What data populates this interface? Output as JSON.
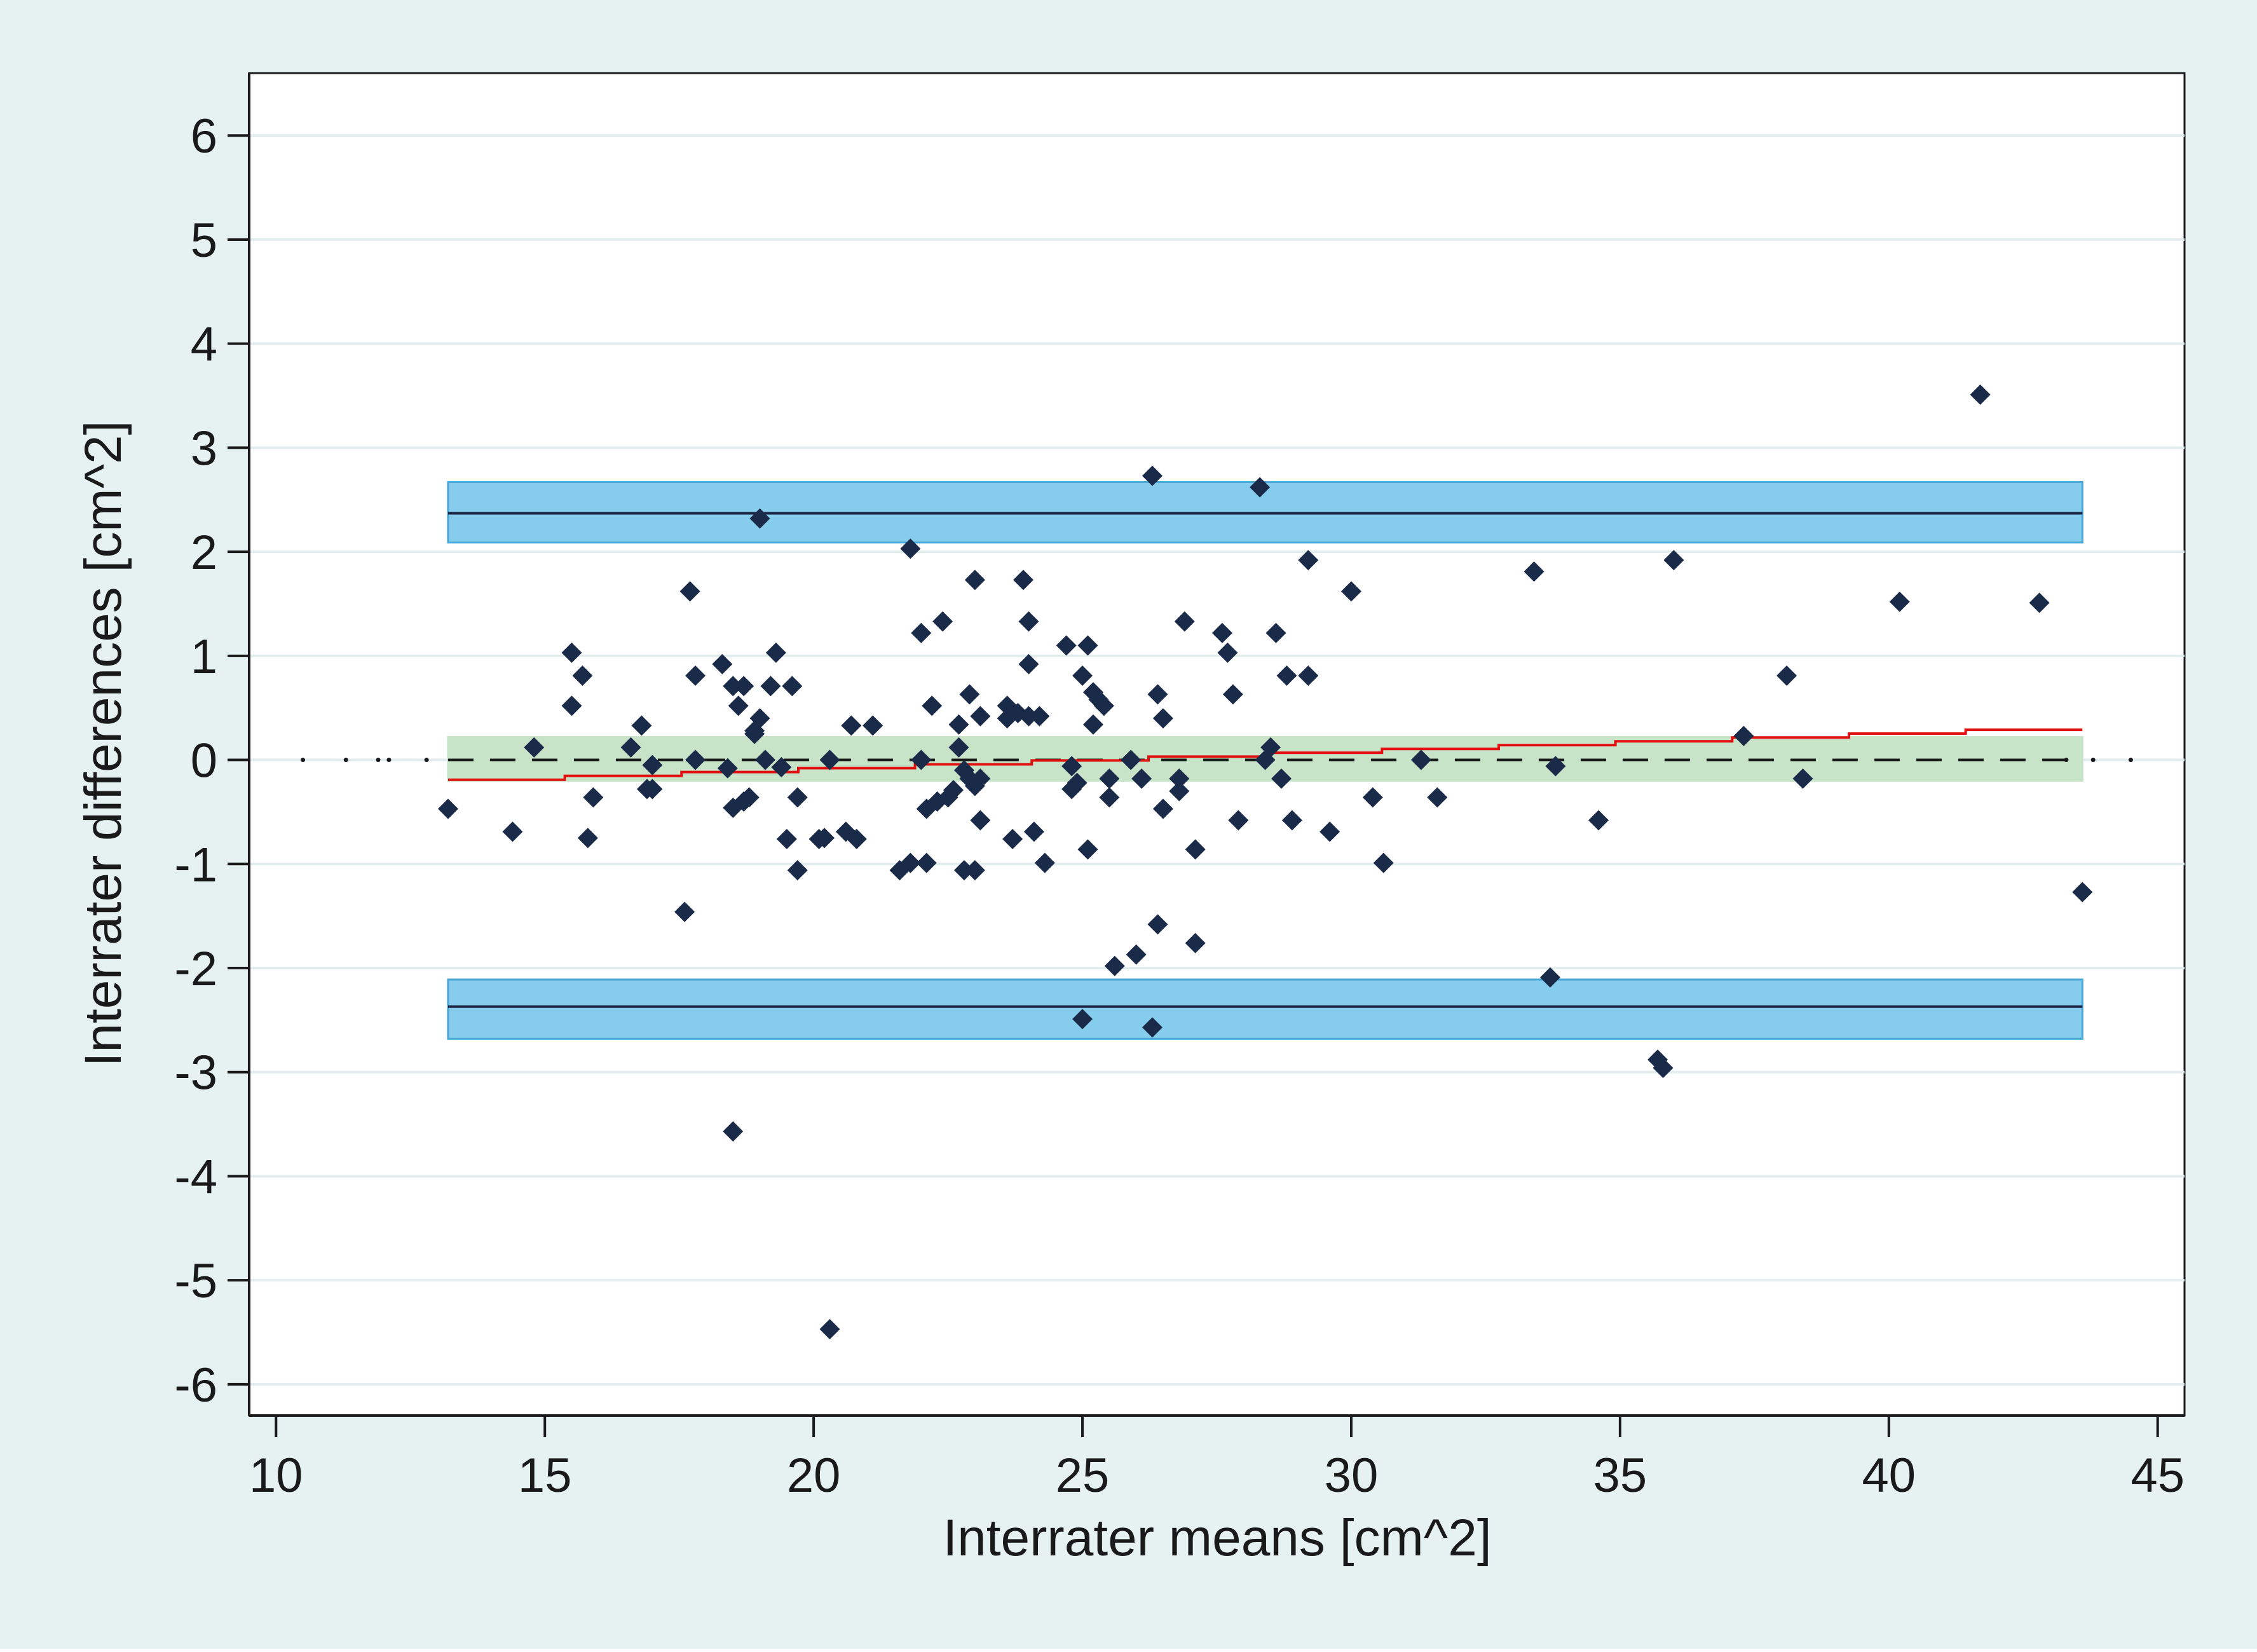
{
  "chart_data": {
    "type": "scatter",
    "subtype": "bland-altman",
    "title": "",
    "xlabel": "Interrater means [cm^2]",
    "ylabel": "Interrater differences [cm^2]",
    "xlim": [
      9.5,
      45.5
    ],
    "ylim": [
      -6.3,
      6.6
    ],
    "xticks": [
      10,
      15,
      20,
      25,
      30,
      35,
      40,
      45
    ],
    "yticks": [
      -6,
      -5,
      -4,
      -3,
      -2,
      -1,
      0,
      1,
      2,
      3,
      4,
      5,
      6
    ],
    "grid": "horizontal",
    "colors": {
      "outer_background": "#e6f1f1",
      "plot_background": "#ffffff",
      "gridline": "#e4eded",
      "point": "#1a2b4a",
      "loa_band": "#86ccec",
      "loa_band_edge": "#4aa6d6",
      "loa_line": "#1a2440",
      "mean_band": "#c8e4c8",
      "mean_line": "#1a1a1a",
      "trend_line": "#e01010",
      "axis": "#1a1a1a"
    },
    "bands": {
      "x_range": [
        13.2,
        43.6
      ],
      "upper_loa": {
        "line": 2.37,
        "low": 2.09,
        "high": 2.67
      },
      "lower_loa": {
        "line": -2.37,
        "low": -2.68,
        "high": -2.11
      },
      "mean_difference": {
        "line": 0.0,
        "low": -0.2,
        "high": 0.22
      }
    },
    "zero_reference_line": {
      "y": 0,
      "dotted_x_values": [
        10.5,
        11.3,
        11.9,
        12.1,
        12.8,
        43.3,
        43.8,
        44.5
      ]
    },
    "trend_line": {
      "x_start": 13.2,
      "y_start": -0.19,
      "x_end": 43.6,
      "y_end": 0.29,
      "steps": 14
    },
    "points": [
      [
        13.2,
        -0.47
      ],
      [
        14.4,
        -0.69
      ],
      [
        14.8,
        0.12
      ],
      [
        15.5,
        1.03
      ],
      [
        15.5,
        0.52
      ],
      [
        15.7,
        0.81
      ],
      [
        15.8,
        -0.75
      ],
      [
        15.9,
        -0.36
      ],
      [
        16.6,
        0.12
      ],
      [
        16.8,
        0.33
      ],
      [
        16.9,
        -0.28
      ],
      [
        17.0,
        -0.28
      ],
      [
        17.0,
        -0.05
      ],
      [
        17.6,
        -1.46
      ],
      [
        17.7,
        1.62
      ],
      [
        17.8,
        0.81
      ],
      [
        17.8,
        0.0
      ],
      [
        18.3,
        0.92
      ],
      [
        18.4,
        -0.08
      ],
      [
        18.5,
        -0.46
      ],
      [
        18.5,
        0.71
      ],
      [
        18.5,
        -3.57
      ],
      [
        18.6,
        0.52
      ],
      [
        18.7,
        0.71
      ],
      [
        18.7,
        -0.4
      ],
      [
        18.8,
        -0.36
      ],
      [
        18.9,
        0.28
      ],
      [
        18.9,
        0.25
      ],
      [
        19.0,
        0.4
      ],
      [
        19.0,
        2.32
      ],
      [
        19.1,
        0.0
      ],
      [
        19.2,
        0.71
      ],
      [
        19.3,
        1.03
      ],
      [
        19.4,
        -0.07
      ],
      [
        19.5,
        -0.76
      ],
      [
        19.6,
        0.71
      ],
      [
        19.7,
        -0.36
      ],
      [
        19.7,
        -1.06
      ],
      [
        20.1,
        -0.76
      ],
      [
        20.2,
        -0.75
      ],
      [
        20.3,
        0.0
      ],
      [
        20.3,
        -5.47
      ],
      [
        20.6,
        -0.69
      ],
      [
        20.7,
        0.33
      ],
      [
        20.8,
        -0.76
      ],
      [
        21.1,
        0.33
      ],
      [
        21.6,
        -1.06
      ],
      [
        21.8,
        -0.99
      ],
      [
        21.8,
        2.03
      ],
      [
        22.0,
        1.22
      ],
      [
        22.0,
        0.0
      ],
      [
        22.1,
        -0.99
      ],
      [
        22.1,
        -0.47
      ],
      [
        22.2,
        0.52
      ],
      [
        22.3,
        -0.4
      ],
      [
        22.4,
        1.33
      ],
      [
        22.5,
        -0.36
      ],
      [
        22.6,
        -0.29
      ],
      [
        22.7,
        0.34
      ],
      [
        22.7,
        0.12
      ],
      [
        22.8,
        -1.06
      ],
      [
        22.8,
        -0.1
      ],
      [
        22.9,
        -0.18
      ],
      [
        22.9,
        0.63
      ],
      [
        23.0,
        1.73
      ],
      [
        23.0,
        -0.25
      ],
      [
        23.0,
        -1.06
      ],
      [
        23.1,
        -0.58
      ],
      [
        23.1,
        -0.18
      ],
      [
        23.1,
        0.42
      ],
      [
        23.6,
        0.52
      ],
      [
        23.6,
        0.4
      ],
      [
        23.7,
        -0.76
      ],
      [
        23.8,
        0.45
      ],
      [
        23.9,
        1.73
      ],
      [
        24.0,
        0.42
      ],
      [
        24.0,
        1.33
      ],
      [
        24.0,
        0.92
      ],
      [
        24.1,
        -0.69
      ],
      [
        24.2,
        0.42
      ],
      [
        24.3,
        -0.99
      ],
      [
        24.7,
        1.1
      ],
      [
        24.8,
        -0.06
      ],
      [
        24.8,
        -0.28
      ],
      [
        24.9,
        -0.22
      ],
      [
        25.0,
        -2.49
      ],
      [
        25.0,
        0.81
      ],
      [
        25.1,
        1.1
      ],
      [
        25.1,
        -0.86
      ],
      [
        25.2,
        0.65
      ],
      [
        25.2,
        0.34
      ],
      [
        25.3,
        0.58
      ],
      [
        25.4,
        0.52
      ],
      [
        25.5,
        -0.18
      ],
      [
        25.5,
        -0.36
      ],
      [
        25.6,
        -1.98
      ],
      [
        25.9,
        0.0
      ],
      [
        26.0,
        -1.87
      ],
      [
        26.1,
        -0.18
      ],
      [
        26.3,
        2.73
      ],
      [
        26.3,
        -2.57
      ],
      [
        26.4,
        -1.58
      ],
      [
        26.4,
        0.63
      ],
      [
        26.5,
        0.4
      ],
      [
        26.5,
        -0.47
      ],
      [
        26.8,
        -0.18
      ],
      [
        26.8,
        -0.3
      ],
      [
        26.9,
        1.33
      ],
      [
        27.1,
        -1.76
      ],
      [
        27.1,
        -0.86
      ],
      [
        27.6,
        1.22
      ],
      [
        27.7,
        1.03
      ],
      [
        27.8,
        0.63
      ],
      [
        27.9,
        -0.58
      ],
      [
        28.3,
        2.62
      ],
      [
        28.4,
        0.0
      ],
      [
        28.5,
        0.12
      ],
      [
        28.6,
        1.22
      ],
      [
        28.7,
        -0.18
      ],
      [
        28.8,
        0.81
      ],
      [
        28.9,
        -0.58
      ],
      [
        29.2,
        1.92
      ],
      [
        29.2,
        0.81
      ],
      [
        29.6,
        -0.69
      ],
      [
        30.0,
        1.62
      ],
      [
        30.4,
        -0.36
      ],
      [
        30.6,
        -0.99
      ],
      [
        31.3,
        0.0
      ],
      [
        31.6,
        -0.36
      ],
      [
        33.4,
        1.81
      ],
      [
        33.7,
        -2.09
      ],
      [
        33.8,
        -0.06
      ],
      [
        34.6,
        -0.58
      ],
      [
        35.7,
        -2.88
      ],
      [
        35.8,
        -2.96
      ],
      [
        36.0,
        1.92
      ],
      [
        37.3,
        0.23
      ],
      [
        38.1,
        0.81
      ],
      [
        38.4,
        -0.18
      ],
      [
        40.2,
        1.52
      ],
      [
        41.7,
        3.51
      ],
      [
        42.8,
        1.51
      ],
      [
        43.6,
        -1.27
      ]
    ]
  }
}
